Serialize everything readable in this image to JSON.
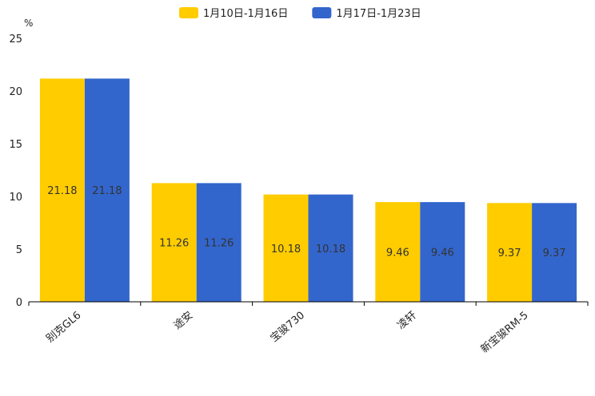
{
  "chart_data": {
    "type": "bar",
    "unit": "%",
    "categories": [
      "别克GL6",
      "途安",
      "宝骏730",
      "凌轩",
      "新宝骏RM-5"
    ],
    "series": [
      {
        "name": "1月10日-1月16日",
        "color": "#ffcc00",
        "values": [
          21.18,
          11.26,
          10.18,
          9.46,
          9.37
        ]
      },
      {
        "name": "1月17日-1月23日",
        "color": "#3366cc",
        "values": [
          21.18,
          11.26,
          10.18,
          9.46,
          9.37
        ]
      }
    ],
    "y_ticks": [
      "0",
      "5",
      "10",
      "15",
      "20",
      "25"
    ],
    "ylim": [
      0,
      25
    ],
    "legend_position": "top-center",
    "grid": false
  }
}
